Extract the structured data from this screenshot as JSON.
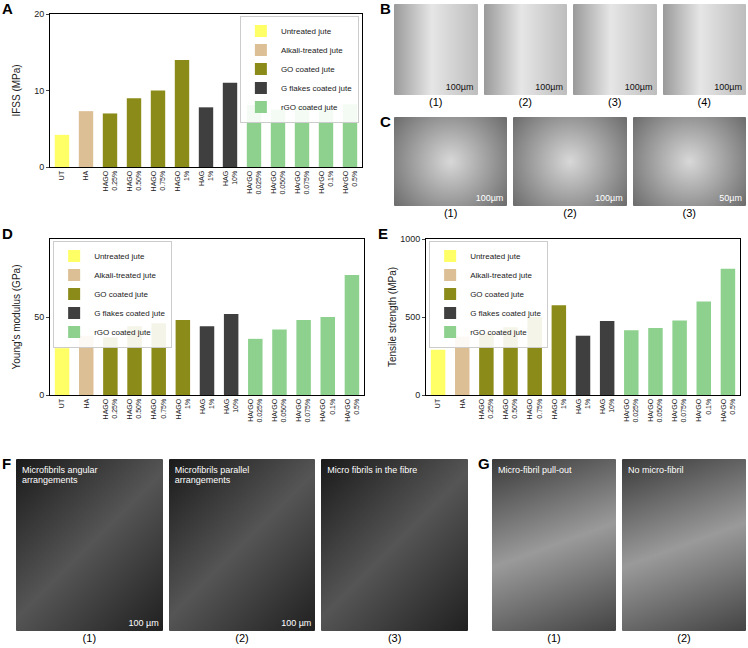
{
  "chart_data": [
    {
      "label": "A",
      "type": "bar",
      "ylabel": "IFSS (MPa)",
      "categories": [
        "UT",
        "HA",
        "HAGO 0.25%",
        "HAGO 0.50%",
        "HAGO 0.75%",
        "HAGO 1%",
        "HAG 1%",
        "HAG 10%",
        "HArGO 0.025%",
        "HArGO 0.050%",
        "HArGO 0.075%",
        "HArGO 0.1%",
        "HArGO 0.5%"
      ],
      "series": [
        {
          "name": "Untreated jute",
          "color": "#ffff66",
          "values": [
            4.2,
            null,
            null,
            null,
            null,
            null,
            null,
            null,
            null,
            null,
            null,
            null,
            null
          ]
        },
        {
          "name": "Alkali-treated jute",
          "color": "#dcbf94",
          "values": [
            null,
            7.3,
            null,
            null,
            null,
            null,
            null,
            null,
            null,
            null,
            null,
            null,
            null
          ]
        },
        {
          "name": "GO coated jute",
          "color": "#8b8b1a",
          "values": [
            null,
            null,
            7.0,
            9.0,
            10.0,
            14.0,
            null,
            null,
            null,
            null,
            null,
            null,
            null
          ]
        },
        {
          "name": "G flakes coated jute",
          "color": "#3f3f3f",
          "values": [
            null,
            null,
            null,
            null,
            null,
            null,
            7.8,
            11.0,
            null,
            null,
            null,
            null,
            null
          ]
        },
        {
          "name": "rGO coated jute",
          "color": "#8ed18e",
          "values": [
            null,
            null,
            null,
            null,
            null,
            null,
            null,
            null,
            8.1,
            7.5,
            8.0,
            7.6,
            8.2
          ]
        }
      ],
      "ylim": [
        0,
        20
      ],
      "yticks": [
        0,
        10,
        20
      ],
      "legend": "upper right"
    },
    {
      "label": "D",
      "type": "bar",
      "ylabel": "Young's modulus (GPa)",
      "categories": [
        "UT",
        "HA",
        "HAGO 0.25%",
        "HAGO 0.50%",
        "HAGO 0.75%",
        "HAGO 1%",
        "HAG 1%",
        "HAG 10%",
        "HArGO 0.025%",
        "HArGO 0.050%",
        "HArGO 0.075%",
        "HArGO 0.1%",
        "HArGO 0.5%"
      ],
      "series": [
        {
          "name": "Untreated jute",
          "color": "#ffff66",
          "values": [
            30,
            null,
            null,
            null,
            null,
            null,
            null,
            null,
            null,
            null,
            null,
            null,
            null
          ]
        },
        {
          "name": "Alkali-treated jute",
          "color": "#dcbf94",
          "values": [
            null,
            38,
            null,
            null,
            null,
            null,
            null,
            null,
            null,
            null,
            null,
            null,
            null
          ]
        },
        {
          "name": "GO coated jute",
          "color": "#8b8b1a",
          "values": [
            null,
            null,
            37,
            44,
            46,
            48,
            null,
            null,
            null,
            null,
            null,
            null,
            null
          ]
        },
        {
          "name": "G flakes coated jute",
          "color": "#3f3f3f",
          "values": [
            null,
            null,
            null,
            null,
            null,
            null,
            44,
            52,
            null,
            null,
            null,
            null,
            null
          ]
        },
        {
          "name": "rGO coated jute",
          "color": "#8ed18e",
          "values": [
            null,
            null,
            null,
            null,
            null,
            null,
            null,
            null,
            36,
            42,
            48,
            50,
            77
          ]
        }
      ],
      "ylim": [
        0,
        100
      ],
      "yticks": [
        0,
        50
      ],
      "legend": "upper left"
    },
    {
      "label": "E",
      "type": "bar",
      "ylabel": "Tensile strength (MPa)",
      "categories": [
        "UT",
        "HA",
        "HAGO 0.25%",
        "HAGO 0.50%",
        "HAGO 0.75%",
        "HAGO 1%",
        "HAG 1%",
        "HAG 10%",
        "HArGO 0.025%",
        "HArGO 0.050%",
        "HArGO 0.075%",
        "HArGO 0.1%",
        "HArGO 0.5%"
      ],
      "series": [
        {
          "name": "Untreated jute",
          "color": "#ffff66",
          "values": [
            290,
            null,
            null,
            null,
            null,
            null,
            null,
            null,
            null,
            null,
            null,
            null,
            null
          ]
        },
        {
          "name": "Alkali-treated jute",
          "color": "#dcbf94",
          "values": [
            null,
            375,
            null,
            null,
            null,
            null,
            null,
            null,
            null,
            null,
            null,
            null,
            null
          ]
        },
        {
          "name": "GO coated jute",
          "color": "#8b8b1a",
          "values": [
            null,
            null,
            395,
            435,
            500,
            575,
            null,
            null,
            null,
            null,
            null,
            null,
            null
          ]
        },
        {
          "name": "G flakes coated jute",
          "color": "#3f3f3f",
          "values": [
            null,
            null,
            null,
            null,
            null,
            null,
            380,
            475,
            null,
            null,
            null,
            null,
            null
          ]
        },
        {
          "name": "rGO coated jute",
          "color": "#8ed18e",
          "values": [
            null,
            null,
            null,
            null,
            null,
            null,
            null,
            null,
            415,
            430,
            478,
            600,
            810
          ]
        }
      ],
      "ylim": [
        0,
        1000
      ],
      "yticks": [
        0,
        500,
        1000
      ],
      "legend": "upper left"
    }
  ],
  "image_panels": [
    {
      "label": "B",
      "images": [
        {
          "caption": "(1)",
          "scale": "100µm"
        },
        {
          "caption": "(2)",
          "scale": "100µm"
        },
        {
          "caption": "(3)",
          "scale": "100µm"
        },
        {
          "caption": "(4)",
          "scale": "100µm"
        }
      ]
    },
    {
      "label": "C",
      "images": [
        {
          "caption": "(1)",
          "scale": "100µm"
        },
        {
          "caption": "(2)",
          "scale": "100µm"
        },
        {
          "caption": "(3)",
          "scale": "50µm"
        }
      ]
    },
    {
      "label": "F",
      "images": [
        {
          "caption": "(1)",
          "scale": "100 µm",
          "note": "Microfibrils angular arrangements"
        },
        {
          "caption": "(2)",
          "scale": "100 µm",
          "note": "Microfibrils parallel arrangements"
        },
        {
          "caption": "(3)",
          "note": "Micro fibrils in the fibre"
        }
      ]
    },
    {
      "label": "G",
      "images": [
        {
          "caption": "(1)",
          "note": "Micro-fibril pull-out"
        },
        {
          "caption": "(2)",
          "note": "No micro-fibril"
        }
      ]
    }
  ]
}
